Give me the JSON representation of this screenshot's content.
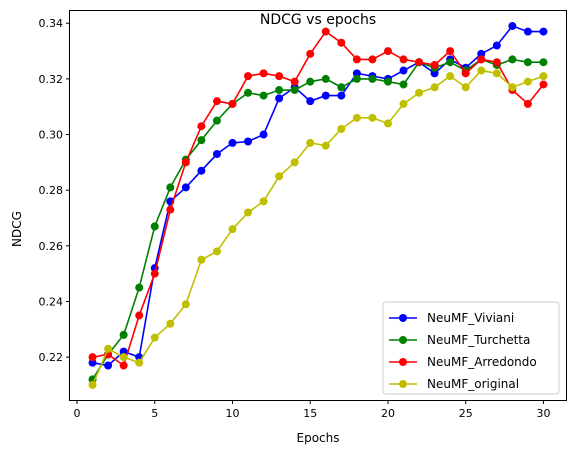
{
  "chart_data": {
    "type": "line",
    "title": "NDCG vs epochs",
    "xlabel": "Epochs",
    "ylabel": "NDCG",
    "xlim": [
      -0.45,
      31.45
    ],
    "ylim": [
      0.2046,
      0.3444
    ],
    "xticks": [
      0,
      5,
      10,
      15,
      20,
      25,
      30
    ],
    "yticks": [
      0.22,
      0.24,
      0.26,
      0.28,
      0.3,
      0.32,
      0.34
    ],
    "ytick_labels": [
      "0.22",
      "0.24",
      "0.26",
      "0.28",
      "0.30",
      "0.32",
      "0.34"
    ],
    "grid": false,
    "legend_position": "lower right",
    "x": [
      1,
      2,
      3,
      4,
      5,
      6,
      7,
      8,
      9,
      10,
      11,
      12,
      13,
      14,
      15,
      16,
      17,
      18,
      19,
      20,
      21,
      22,
      23,
      24,
      25,
      26,
      27,
      28,
      29,
      30
    ],
    "series": [
      {
        "name": "NeuMF_Viviani",
        "color": "#0000ff",
        "values": [
          0.218,
          0.217,
          0.222,
          0.22,
          0.252,
          0.276,
          0.281,
          0.287,
          0.293,
          0.297,
          0.2975,
          0.3,
          0.313,
          0.317,
          0.312,
          0.314,
          0.314,
          0.322,
          0.321,
          0.32,
          0.323,
          0.326,
          0.322,
          0.327,
          0.324,
          0.329,
          0.332,
          0.339,
          0.337,
          0.337
        ]
      },
      {
        "name": "NeuMF_Turchetta",
        "color": "#008000",
        "values": [
          0.212,
          0.221,
          0.228,
          0.245,
          0.267,
          0.281,
          0.291,
          0.298,
          0.305,
          0.311,
          0.315,
          0.314,
          0.316,
          0.316,
          0.319,
          0.32,
          0.317,
          0.32,
          0.32,
          0.319,
          0.318,
          0.326,
          0.324,
          0.326,
          0.323,
          0.327,
          0.325,
          0.327,
          0.326,
          0.326
        ]
      },
      {
        "name": "NeuMF_Arredondo",
        "color": "#ff0000",
        "values": [
          0.22,
          0.221,
          0.217,
          0.235,
          0.25,
          0.273,
          0.29,
          0.303,
          0.312,
          0.311,
          0.321,
          0.322,
          0.321,
          0.319,
          0.329,
          0.337,
          0.333,
          0.327,
          0.327,
          0.33,
          0.327,
          0.326,
          0.325,
          0.33,
          0.322,
          0.327,
          0.326,
          0.316,
          0.311,
          0.318
        ]
      },
      {
        "name": "NeuMF_original",
        "color": "#bfbf00",
        "values": [
          0.21,
          0.223,
          0.22,
          0.218,
          0.227,
          0.232,
          0.239,
          0.255,
          0.258,
          0.266,
          0.272,
          0.276,
          0.285,
          0.29,
          0.297,
          0.296,
          0.302,
          0.306,
          0.306,
          0.304,
          0.311,
          0.315,
          0.317,
          0.321,
          0.317,
          0.323,
          0.322,
          0.317,
          0.319,
          0.321
        ]
      }
    ]
  }
}
